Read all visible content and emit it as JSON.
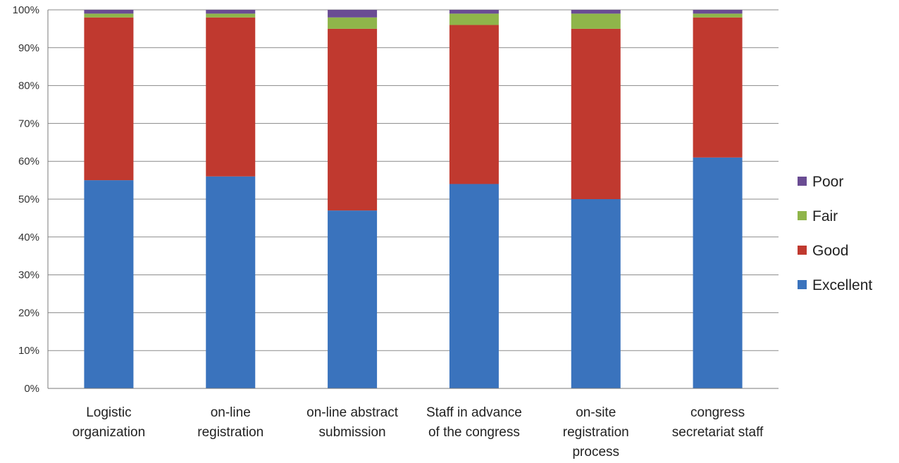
{
  "chart_data": {
    "type": "bar",
    "stacked": true,
    "categories": [
      "Logistic organization",
      "on-line registration",
      "on-line abstract submission",
      "Staff in advance of the congress",
      "on-site registration process",
      "congress secretariat staff"
    ],
    "category_label_lines": [
      [
        "Logistic",
        "organization"
      ],
      [
        "on-line",
        "registration"
      ],
      [
        "on-line abstract",
        "submission"
      ],
      [
        "Staff in advance",
        "of the congress"
      ],
      [
        "on-site",
        "registration",
        "process"
      ],
      [
        "congress",
        "secretariat staff"
      ]
    ],
    "series": [
      {
        "name": "Excellent",
        "color": "#3a73bd",
        "values": [
          55,
          56,
          47,
          54,
          50,
          61
        ]
      },
      {
        "name": "Good",
        "color": "#c0392f",
        "values": [
          43,
          42,
          48,
          42,
          45,
          37
        ]
      },
      {
        "name": "Fair",
        "color": "#8fb54a",
        "values": [
          1,
          1,
          3,
          3,
          4,
          1
        ]
      },
      {
        "name": "Poor",
        "color": "#6a4c93",
        "values": [
          1,
          1,
          2,
          1,
          1,
          1
        ]
      }
    ],
    "ylim": [
      0,
      100
    ],
    "yticks": [
      0,
      10,
      20,
      30,
      40,
      50,
      60,
      70,
      80,
      90,
      100
    ],
    "ytick_labels": [
      "0%",
      "10%",
      "20%",
      "30%",
      "40%",
      "50%",
      "60%",
      "70%",
      "80%",
      "90%",
      "100%"
    ],
    "legend_position": "right",
    "legend_order": [
      "Poor",
      "Fair",
      "Good",
      "Excellent"
    ],
    "grid": true,
    "title": "",
    "xlabel": "",
    "ylabel": ""
  }
}
